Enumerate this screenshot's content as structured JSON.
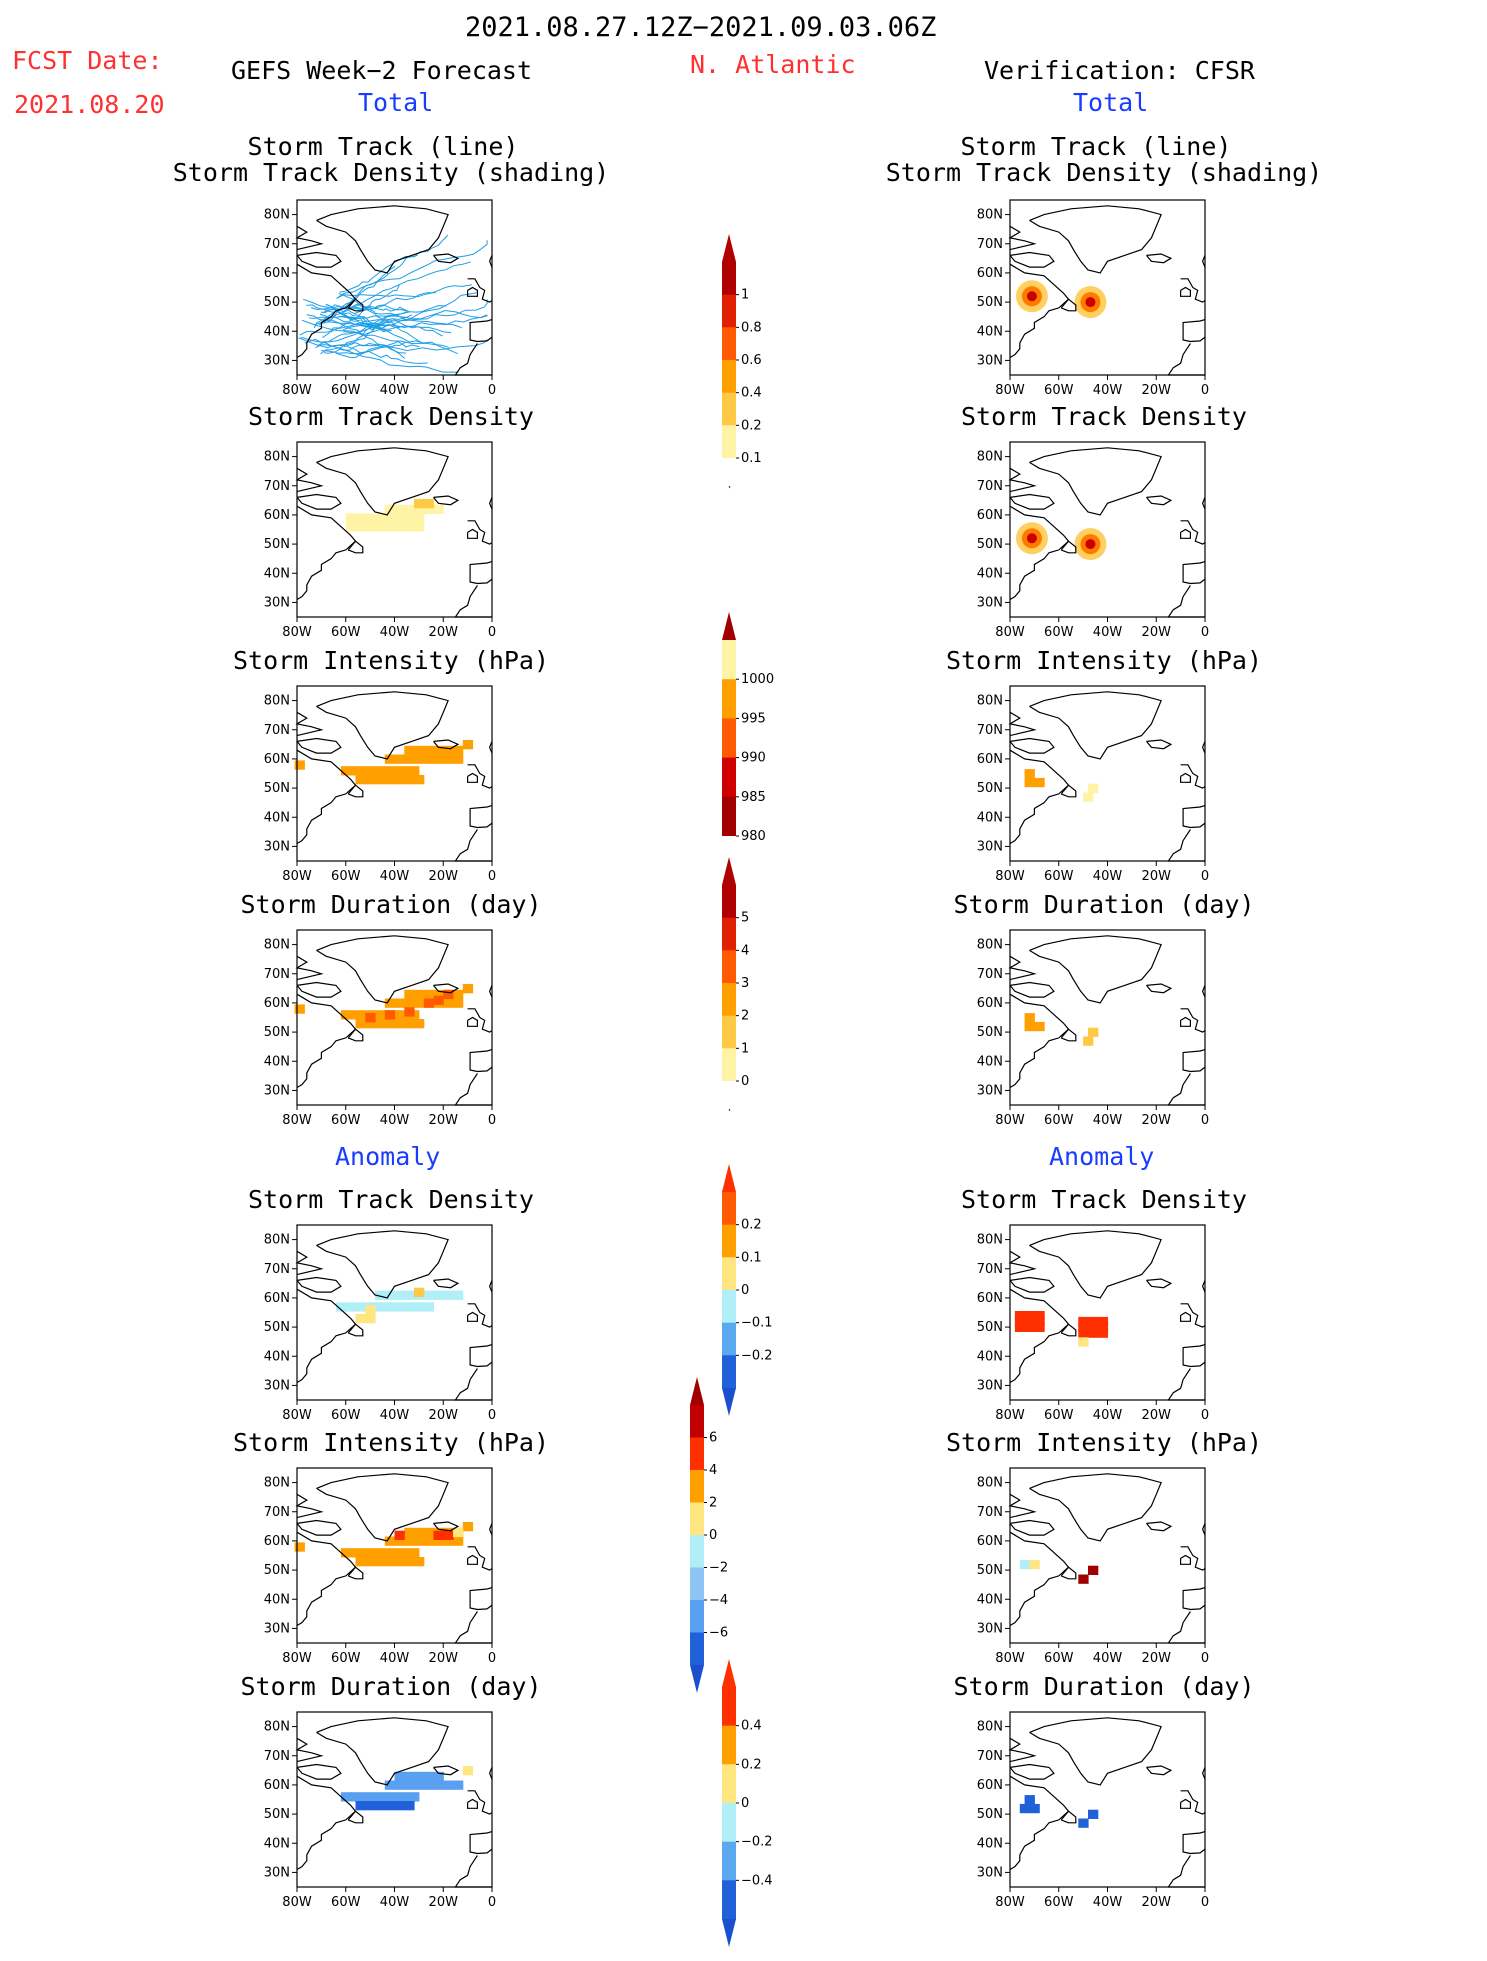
{
  "header": {
    "date_range": "2021.08.27.12Z−2021.09.03.06Z",
    "fcst_label": "FCST Date:",
    "fcst_date": "2021.08.20",
    "left_title": "GEFS Week−2 Forecast",
    "region": "N. Atlantic",
    "right_title": "Verification: CFSR",
    "total_label": "Total",
    "anomaly_label": "Anomaly"
  },
  "axes": {
    "lat_ticks": [
      "80N",
      "70N",
      "60N",
      "50N",
      "40N",
      "30N"
    ],
    "lon_ticks": [
      "80W",
      "60W",
      "40W",
      "20W",
      "0"
    ]
  },
  "panel_titles": {
    "track_line": "Storm Track (line)",
    "track_shading": "Storm Track Density (shading)",
    "density": "Storm Track Density",
    "intensity": "Storm Intensity (hPa)",
    "duration": "Storm Duration (day)"
  },
  "colors": {
    "blue_text": "#1a3cff",
    "red_text": "#ff3030",
    "track_line": "#1e9ee8"
  },
  "chart_data": [
    {
      "type": "heatmap",
      "title": "Storm Track (line) Storm Track Density (shading)",
      "source": "GEFS Week−2 Forecast",
      "section": "Total",
      "colorbar": [
        0.1,
        0.2,
        0.4,
        0.6,
        0.8,
        1
      ]
    },
    {
      "type": "heatmap",
      "title": "Storm Track Density",
      "source": "GEFS Week−2 Forecast",
      "section": "Total",
      "colorbar": [
        0.1,
        0.2,
        0.4,
        0.6,
        0.8,
        1
      ]
    },
    {
      "type": "heatmap",
      "title": "Storm Intensity (hPa)",
      "source": "GEFS Week−2 Forecast",
      "section": "Total",
      "colorbar": [
        1000,
        995,
        990,
        985,
        980
      ]
    },
    {
      "type": "heatmap",
      "title": "Storm Duration (day)",
      "source": "GEFS Week−2 Forecast",
      "section": "Total",
      "colorbar": [
        0,
        1,
        2,
        3,
        4,
        5
      ]
    },
    {
      "type": "heatmap",
      "title": "Storm Track Density",
      "source": "GEFS Week−2 Forecast",
      "section": "Anomaly",
      "colorbar": [
        -0.2,
        -0.1,
        0,
        0.1,
        0.2
      ]
    },
    {
      "type": "heatmap",
      "title": "Storm Intensity (hPa)",
      "source": "GEFS Week−2 Forecast",
      "section": "Anomaly",
      "colorbar": [
        -6,
        -4,
        -2,
        0,
        2,
        4,
        6
      ]
    },
    {
      "type": "heatmap",
      "title": "Storm Duration (day)",
      "source": "GEFS Week−2 Forecast",
      "section": "Anomaly",
      "colorbar": [
        -0.4,
        -0.2,
        0,
        0.2,
        0.4
      ]
    }
  ],
  "colorbars": [
    {
      "labels": [
        "1",
        "0.8",
        "0.6",
        "0.4",
        "0.2",
        "0.1"
      ],
      "colors": [
        "#b00000",
        "#e02000",
        "#ff5a00",
        "#ffa000",
        "#ffc845",
        "#fff3a5"
      ],
      "tail": "#ffffff",
      "head": "#b00000"
    },
    {
      "labels": [
        "1000",
        "995",
        "990",
        "985",
        "980"
      ],
      "colors": [
        "#fff3a5",
        "#ffa000",
        "#ff5a00",
        "#d00000",
        "#a00000"
      ],
      "tail": "#ffffff",
      "head": "#a00000",
      "down": true
    },
    {
      "labels": [
        "5",
        "4",
        "3",
        "2",
        "1",
        "0"
      ],
      "colors": [
        "#b00000",
        "#e02000",
        "#ff5a00",
        "#ffa000",
        "#ffc845",
        "#fff3a5"
      ],
      "tail": "#ffffff",
      "head": "#b00000"
    },
    {
      "labels": [
        "0.2",
        "0.1",
        "0",
        "−0.1",
        "−0.2"
      ],
      "colors": [
        "#ff5a00",
        "#ffa000",
        "#ffe680",
        "#b0eef8",
        "#5aa8f0",
        "#2060d8"
      ],
      "head": "#ff3000",
      "tail": "#1a50d0"
    },
    {
      "labels": [
        "6",
        "4",
        "2",
        "0",
        "−2",
        "−4",
        "−6"
      ],
      "colors": [
        "#c00000",
        "#ff3000",
        "#ffa000",
        "#ffe680",
        "#b0eef8",
        "#8cc4f4",
        "#5aa0f0",
        "#2060d8"
      ],
      "head": "#a00000",
      "tail": "#1a50d0"
    },
    {
      "labels": [
        "0.4",
        "0.2",
        "0",
        "−0.2",
        "−0.4"
      ],
      "colors": [
        "#ff3000",
        "#ffa000",
        "#ffe680",
        "#b0eef8",
        "#5aa8f0",
        "#2060d8"
      ],
      "head": "#ff3000",
      "tail": "#1a50d0"
    }
  ]
}
